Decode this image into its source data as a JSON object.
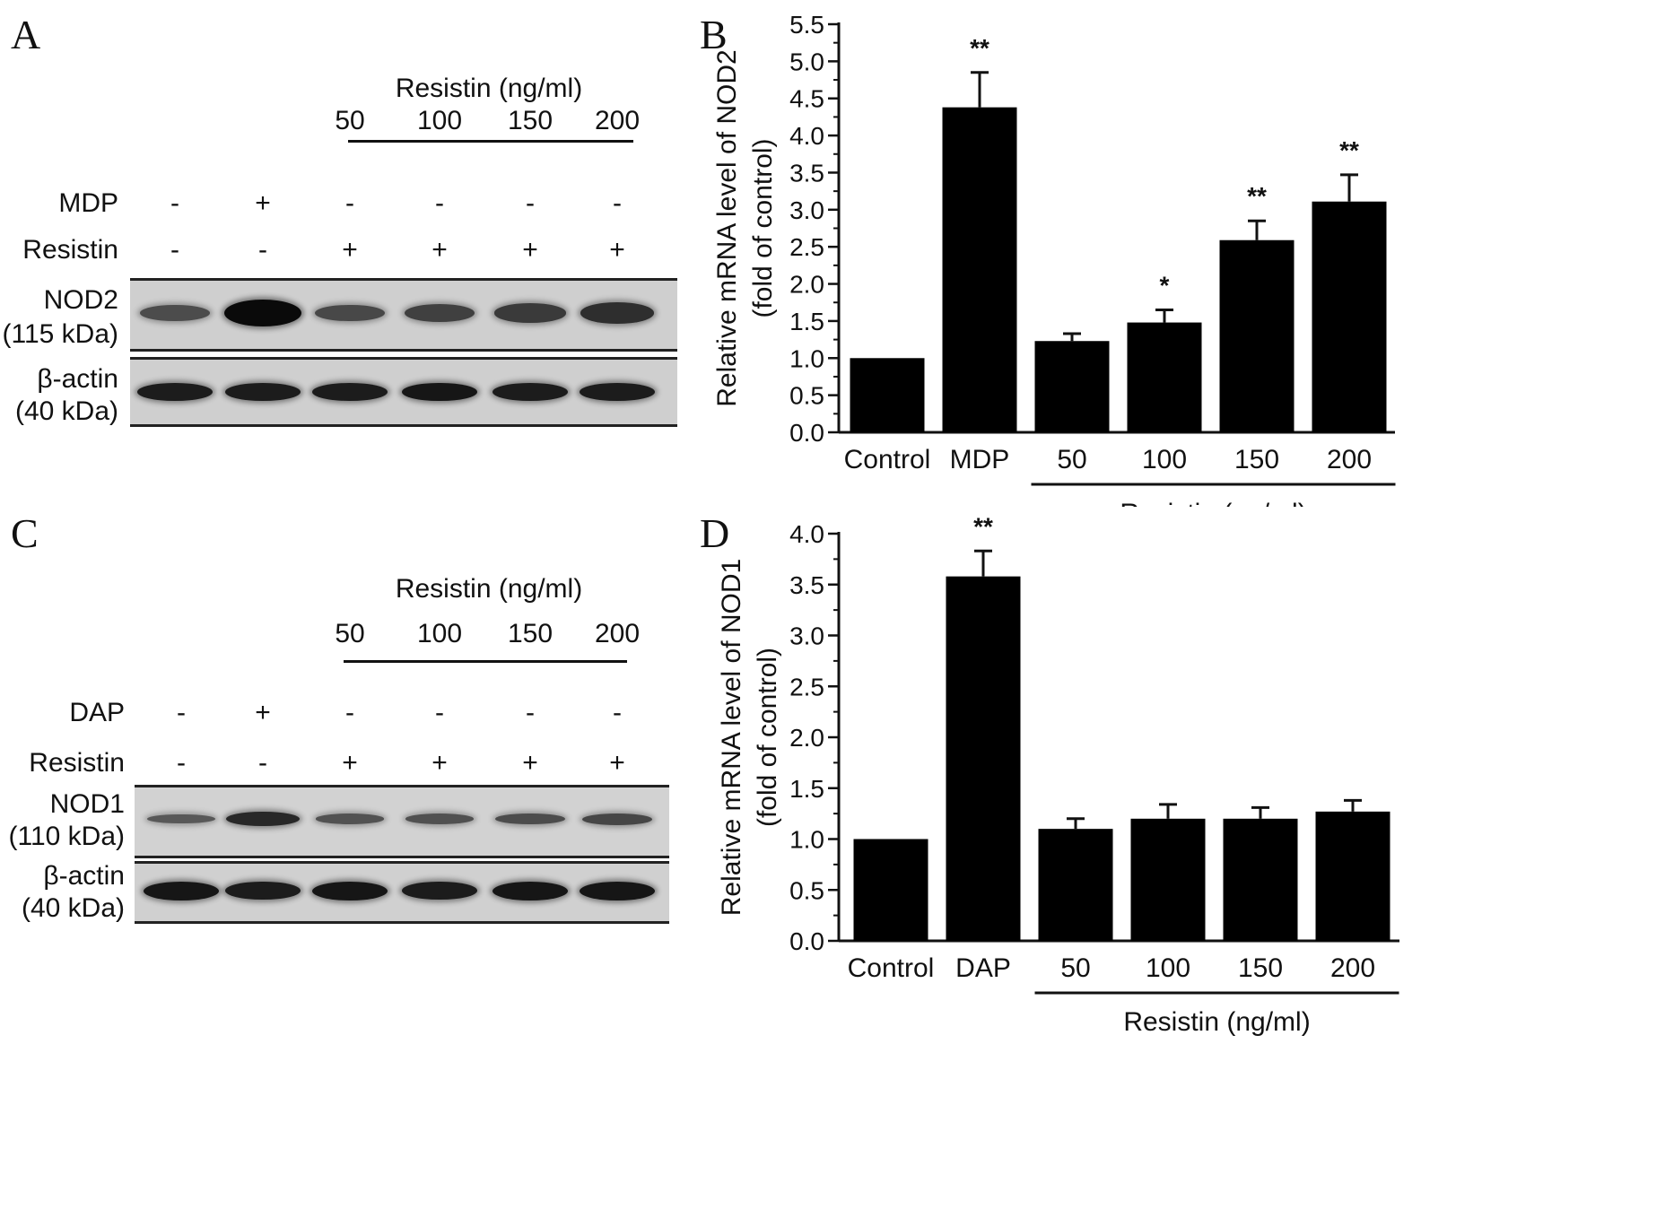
{
  "panels": {
    "A": {
      "letter": "A",
      "group_header": "Resistin (ng/ml)",
      "concentrations": [
        "50",
        "100",
        "150",
        "200"
      ],
      "treatment_row": {
        "label": "MDP",
        "signs": [
          "-",
          "+",
          "-",
          "-",
          "-",
          "-"
        ]
      },
      "resistin_row": {
        "label": "Resistin",
        "signs": [
          "-",
          "-",
          "+",
          "+",
          "+",
          "+"
        ]
      },
      "target_blot": {
        "name": "NOD2",
        "size": "(115 kDa)",
        "intensities": [
          0.45,
          1.0,
          0.48,
          0.55,
          0.6,
          0.7
        ]
      },
      "control_blot": {
        "name": "β-actin",
        "size": "(40 kDa)",
        "intensities": [
          0.85,
          0.85,
          0.85,
          0.9,
          0.85,
          0.85
        ]
      }
    },
    "C": {
      "letter": "C",
      "group_header": "Resistin (ng/ml)",
      "concentrations": [
        "50",
        "100",
        "150",
        "200"
      ],
      "treatment_row": {
        "label": "DAP",
        "signs": [
          "-",
          "+",
          "-",
          "-",
          "-",
          "-"
        ]
      },
      "resistin_row": {
        "label": "Resistin",
        "signs": [
          "-",
          "-",
          "+",
          "+",
          "+",
          "+"
        ]
      },
      "target_blot": {
        "name": "NOD1",
        "size": "(110 kDa)",
        "intensities": [
          0.35,
          0.75,
          0.4,
          0.42,
          0.45,
          0.5
        ]
      },
      "control_blot": {
        "name": "β-actin",
        "size": "(40 kDa)",
        "intensities": [
          0.9,
          0.85,
          0.9,
          0.85,
          0.9,
          0.9
        ]
      }
    }
  },
  "chart_data": [
    {
      "panel": "B",
      "type": "bar",
      "categories": [
        "Control",
        "MDP",
        "50",
        "100",
        "150",
        "200"
      ],
      "values": [
        1.0,
        4.38,
        1.23,
        1.48,
        2.59,
        3.11
      ],
      "errors": [
        0,
        0.47,
        0.1,
        0.17,
        0.26,
        0.36
      ],
      "significance": [
        "",
        "**",
        "",
        "*",
        "**",
        "**"
      ],
      "ylabel": "Relative mRNA level of NOD2",
      "ylabel2": "(fold of control)",
      "group_label": "Resistin (ng/ml)",
      "ylim": [
        0,
        5.5
      ],
      "yticks": [
        "0.0",
        "0.5",
        "1.0",
        "1.5",
        "2.0",
        "2.5",
        "3.0",
        "3.5",
        "4.0",
        "4.5",
        "5.0",
        "5.5"
      ],
      "bar_color": "#000000",
      "grid": false
    },
    {
      "panel": "D",
      "type": "bar",
      "categories": [
        "Control",
        "DAP",
        "50",
        "100",
        "150",
        "200"
      ],
      "values": [
        1.0,
        3.58,
        1.1,
        1.2,
        1.2,
        1.27
      ],
      "errors": [
        0,
        0.25,
        0.1,
        0.14,
        0.11,
        0.11
      ],
      "significance": [
        "",
        "**",
        "",
        "",
        "",
        ""
      ],
      "ylabel": "Relative mRNA level of NOD1",
      "ylabel2": "(fold of control)",
      "group_label": "Resistin (ng/ml)",
      "ylim": [
        0,
        4.0
      ],
      "yticks": [
        "0.0",
        "0.5",
        "1.0",
        "1.5",
        "2.0",
        "2.5",
        "3.0",
        "3.5",
        "4.0"
      ],
      "bar_color": "#000000",
      "grid": false
    }
  ]
}
